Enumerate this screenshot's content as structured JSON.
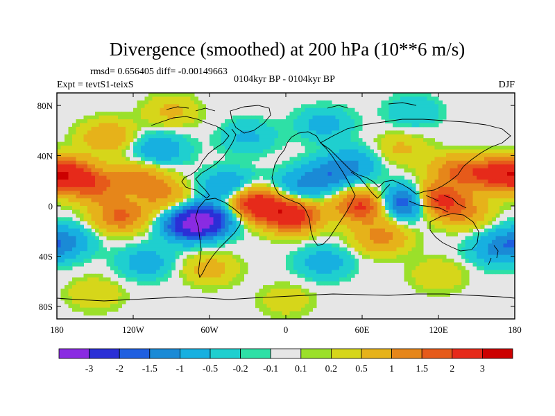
{
  "chart_data": {
    "type": "heatmap",
    "title": "Divergence (smoothed) at 200 hPa (10**6 m/s)",
    "stats_line": "rmsd= 0.656405 diff= -0.00149663",
    "experiment_label": "Expt = tevtS1-teixS",
    "period_label": "0104kyr BP - 0104kyr BP",
    "season_label": "DJF",
    "x_axis": {
      "range": [
        -180,
        180
      ],
      "ticks": [
        -180,
        -120,
        -60,
        0,
        60,
        120,
        180
      ],
      "tick_labels": [
        "180",
        "120W",
        "60W",
        "0",
        "60E",
        "120E",
        "180"
      ]
    },
    "y_axis": {
      "range": [
        -90,
        90
      ],
      "ticks": [
        80,
        40,
        0,
        -40,
        -80
      ],
      "tick_labels": [
        "80N",
        "40N",
        "0",
        "40S",
        "80S"
      ]
    },
    "colorbar": {
      "levels": [
        "-3",
        "-2",
        "-1.5",
        "-1",
        "-0.5",
        "-0.2",
        "-0.1",
        "0.1",
        "0.2",
        "0.5",
        "1",
        "1.5",
        "2",
        "3"
      ],
      "colors": [
        "#8a2be2",
        "#2b2fd6",
        "#1f5fe0",
        "#1a8ad6",
        "#17b0e0",
        "#1fcfcf",
        "#2ee0a6",
        "#e6e6e6",
        "#9be02a",
        "#d6d61a",
        "#e6b21a",
        "#e6861a",
        "#e65a1a",
        "#e62a1a",
        "#cc0000"
      ]
    },
    "field_features": [
      {
        "lon": -170,
        "lat": 25,
        "value": 2.2
      },
      {
        "lon": -150,
        "lat": 15,
        "value": 1.4
      },
      {
        "lon": -130,
        "lat": -8,
        "value": 1.6
      },
      {
        "lon": -115,
        "lat": 22,
        "value": 1.2
      },
      {
        "lon": -95,
        "lat": 8,
        "value": 1.0
      },
      {
        "lon": -75,
        "lat": -15,
        "value": -2.6
      },
      {
        "lon": -60,
        "lat": -10,
        "value": -2.0
      },
      {
        "lon": -45,
        "lat": 15,
        "value": -1.3
      },
      {
        "lon": -30,
        "lat": 5,
        "value": 1.2
      },
      {
        "lon": -20,
        "lat": 0,
        "value": 1.8
      },
      {
        "lon": 5,
        "lat": -8,
        "value": 2.6
      },
      {
        "lon": 10,
        "lat": 15,
        "value": -1.0
      },
      {
        "lon": 35,
        "lat": 25,
        "value": -1.2
      },
      {
        "lon": 55,
        "lat": 35,
        "value": -0.8
      },
      {
        "lon": 60,
        "lat": 0,
        "value": 2.2
      },
      {
        "lon": 75,
        "lat": -25,
        "value": 1.2
      },
      {
        "lon": 95,
        "lat": 3,
        "value": -2.5
      },
      {
        "lon": 118,
        "lat": 5,
        "value": 2.5
      },
      {
        "lon": 135,
        "lat": 28,
        "value": 1.4
      },
      {
        "lon": 140,
        "lat": -5,
        "value": 1.0
      },
      {
        "lon": 165,
        "lat": 25,
        "value": 2.0
      },
      {
        "lon": -175,
        "lat": -28,
        "value": -1.2
      },
      {
        "lon": -110,
        "lat": -45,
        "value": -0.8
      },
      {
        "lon": -100,
        "lat": 45,
        "value": -1.0
      },
      {
        "lon": -140,
        "lat": 55,
        "value": 1.0
      },
      {
        "lon": -30,
        "lat": 55,
        "value": -0.6
      },
      {
        "lon": 30,
        "lat": 65,
        "value": -0.7
      },
      {
        "lon": 90,
        "lat": 45,
        "value": 0.6
      },
      {
        "lon": 165,
        "lat": -35,
        "value": -0.9
      },
      {
        "lon": 30,
        "lat": -45,
        "value": -0.8
      },
      {
        "lon": -60,
        "lat": -50,
        "value": 0.7
      },
      {
        "lon": 120,
        "lat": -55,
        "value": 0.5
      },
      {
        "lon": -90,
        "lat": 75,
        "value": 0.6
      },
      {
        "lon": 100,
        "lat": 75,
        "value": -0.5
      },
      {
        "lon": 0,
        "lat": -75,
        "value": 0.4
      },
      {
        "lon": -150,
        "lat": -70,
        "value": 0.5
      }
    ]
  }
}
